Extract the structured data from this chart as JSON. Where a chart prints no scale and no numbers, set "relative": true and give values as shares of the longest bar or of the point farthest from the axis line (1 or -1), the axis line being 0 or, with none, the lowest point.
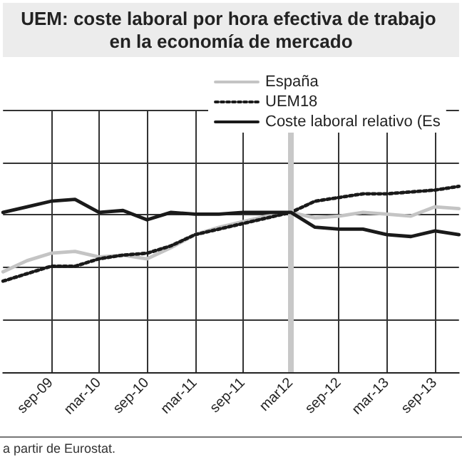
{
  "chart_data": {
    "type": "line",
    "title": "UEM: coste laboral por hora efectiva de trabajo en la economía de mercado",
    "categories": [
      null,
      null,
      "sep-09",
      null,
      "mar-10",
      null,
      "sep-10",
      null,
      "mar-11",
      null,
      "sep-11",
      null,
      "mar12",
      null,
      "sep-12",
      null,
      "mar-13",
      null,
      "sep-13",
      null
    ],
    "relative": true,
    "grid": true,
    "legend": "top right",
    "marker": "none",
    "series": [
      {
        "name": "España",
        "color": "#c4c4c4",
        "line_style": "solid",
        "values": [
          0.54,
          0.6,
          0.64,
          0.65,
          0.62,
          0.63,
          0.61,
          0.67,
          0.74,
          0.78,
          0.81,
          0.84,
          0.86,
          0.83,
          0.84,
          0.86,
          0.85,
          0.84,
          0.89,
          0.88
        ]
      },
      {
        "name": "UEM18",
        "color": "#1a1a1a",
        "line_style": "dotted",
        "values": [
          0.49,
          0.53,
          0.57,
          0.57,
          0.61,
          0.63,
          0.64,
          0.68,
          0.74,
          0.77,
          0.8,
          0.83,
          0.86,
          0.92,
          0.94,
          0.96,
          0.96,
          0.97,
          0.98,
          1.0
        ]
      },
      {
        "name": "Coste laboral relativo (Es",
        "color": "#1a1a1a",
        "line_style": "solid",
        "values": [
          0.86,
          0.89,
          0.92,
          0.93,
          0.86,
          0.87,
          0.82,
          0.86,
          0.85,
          0.85,
          0.86,
          0.86,
          0.86,
          0.78,
          0.77,
          0.77,
          0.74,
          0.73,
          0.76,
          0.74
        ]
      }
    ],
    "ref_lines": [
      {
        "axis": "x",
        "value": "mar12",
        "color": "#c8c8c8"
      }
    ],
    "annotations": [
      "a partir de Eurostat."
    ]
  }
}
